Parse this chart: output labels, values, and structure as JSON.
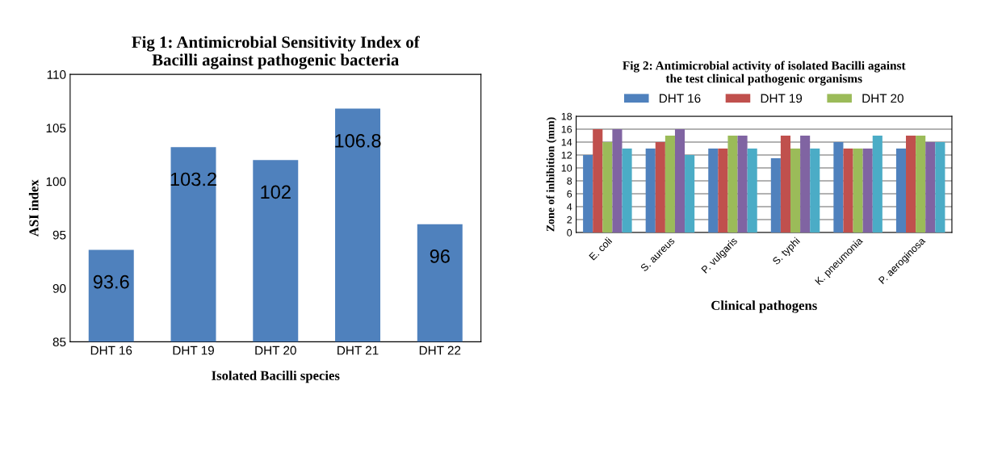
{
  "chart_data": [
    {
      "type": "bar",
      "title": "Fig 1: Antimicrobial Sensitivity Index of\nBacilli against pathogenic bacteria",
      "xlabel": "Isolated Bacilli species",
      "ylabel": "ASI index",
      "categories": [
        "DHT 16",
        "DHT 19",
        "DHT 20",
        "DHT 21",
        "DHT 22"
      ],
      "values": [
        93.6,
        103.2,
        102,
        106.8,
        96
      ],
      "color": "#4f81bd",
      "ylim": [
        85,
        110
      ],
      "yticks": [
        85,
        90,
        95,
        100,
        105,
        110
      ],
      "data_labels": true,
      "grid": false,
      "legend": false
    },
    {
      "type": "bar",
      "title": "Fig 2: Antimicrobial activity of isolated Bacilli against\nthe test clinical pathogenic organisms",
      "xlabel": "Clinical pathogens",
      "ylabel": "Zone of inhibition (mm)",
      "categories": [
        "E. coli",
        "S. aureus",
        "P. vulgaris",
        "S. typhi",
        "K. pneumonia",
        "P. aeroginosa"
      ],
      "series": [
        {
          "name": "DHT 16",
          "color": "#4f81bd",
          "values": [
            12,
            13,
            13,
            11.5,
            14,
            13
          ]
        },
        {
          "name": "DHT 19",
          "color": "#c0504d",
          "values": [
            16,
            14,
            13,
            15,
            13,
            15
          ]
        },
        {
          "name": "DHT 20",
          "color": "#9bbb59",
          "values": [
            14,
            15,
            15,
            13,
            13,
            15
          ]
        },
        {
          "color": "#8064a2",
          "values": [
            16,
            16,
            15,
            15,
            13,
            14
          ]
        },
        {
          "color": "#4bacc6",
          "values": [
            13,
            12,
            13,
            13,
            15,
            14
          ]
        }
      ],
      "ylim": [
        0,
        18
      ],
      "yticks": [
        0,
        2,
        4,
        6,
        8,
        10,
        12,
        14,
        16,
        18
      ],
      "grid": "y",
      "legend": "top"
    }
  ]
}
